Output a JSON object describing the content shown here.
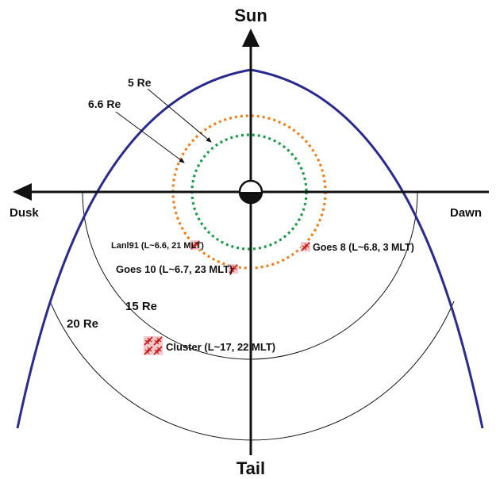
{
  "axes": {
    "top": "Sun",
    "bottom": "Tail",
    "left": "Dusk",
    "right": "Dawn"
  },
  "rings": {
    "inner": "5 Re",
    "outer": "6.6 Re",
    "mid": "15 Re",
    "far": "20 Re"
  },
  "satellites": {
    "lanl": "Lanl91 (L~6.6, 21 MLT)",
    "goes10": "Goes 10 (L~6.7, 23 MLT)",
    "goes8": "Goes 8 (L~6.8, 3 MLT)",
    "cluster": "Cluster (L~17, 22 MLT)"
  },
  "colors": {
    "magnetopause": "#2a2a8f",
    "orbit_inner": "#1a9a4a",
    "orbit_outer": "#f07f1a",
    "satellite_icon": "#c21818"
  }
}
